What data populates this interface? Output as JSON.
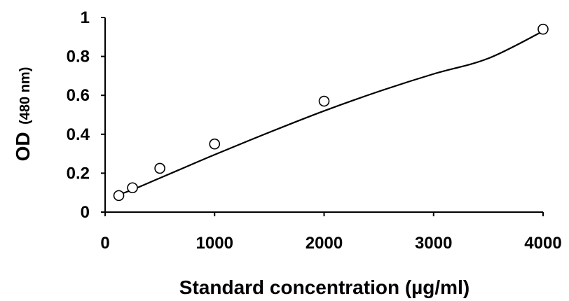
{
  "chart_data": {
    "type": "scatter",
    "title": "",
    "xlabel": "Standard concentration (µg/ml)",
    "ylabel_main": "OD",
    "ylabel_unit": "(480 nm)",
    "xlim": [
      0,
      4000
    ],
    "ylim": [
      0,
      1
    ],
    "xticks": [
      0,
      1000,
      2000,
      3000,
      4000
    ],
    "xtick_labels": [
      "0",
      "1000",
      "2000",
      "3000",
      "4000"
    ],
    "yticks": [
      0,
      0.2,
      0.4,
      0.6,
      0.8,
      1
    ],
    "ytick_labels": [
      "0",
      "0.2",
      "0.4",
      "0.6",
      "0.8",
      "1"
    ],
    "grid": false,
    "series": [
      {
        "marker": "open-circle",
        "x": [
          125,
          250,
          500,
          1000,
          2000,
          4000
        ],
        "y": [
          0.085,
          0.125,
          0.225,
          0.35,
          0.57,
          0.94
        ]
      }
    ],
    "fit_curve": {
      "style": "solid",
      "x": [
        125,
        250,
        500,
        750,
        1000,
        1500,
        2000,
        2500,
        3000,
        3500,
        4000
      ],
      "y": [
        0.09,
        0.115,
        0.175,
        0.235,
        0.295,
        0.41,
        0.52,
        0.62,
        0.71,
        0.79,
        0.93
      ]
    }
  }
}
